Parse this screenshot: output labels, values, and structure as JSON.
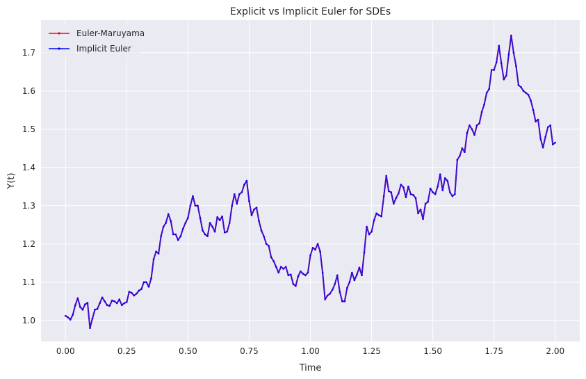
{
  "chart_data": {
    "type": "line",
    "title": "Explicit vs Implicit Euler for SDEs",
    "xlabel": "Time",
    "ylabel": "Y(t)",
    "xlim": [
      -0.1,
      2.1
    ],
    "ylim": [
      0.945,
      1.785
    ],
    "xticks": [
      0.0,
      0.25,
      0.5,
      0.75,
      1.0,
      1.25,
      1.5,
      1.75,
      2.0
    ],
    "xtick_labels": [
      "0.00",
      "0.25",
      "0.50",
      "0.75",
      "1.00",
      "1.25",
      "1.50",
      "1.75",
      "2.00"
    ],
    "yticks": [
      1.0,
      1.1,
      1.2,
      1.3,
      1.4,
      1.5,
      1.6,
      1.7
    ],
    "ytick_labels": [
      "1.0",
      "1.1",
      "1.2",
      "1.3",
      "1.4",
      "1.5",
      "1.6",
      "1.7"
    ],
    "grid": true,
    "legend": "top-left",
    "colors": {
      "background": "#eaeaf2",
      "grid": "#ffffff",
      "euler": "#ff0000",
      "implicit": "#0000ff"
    },
    "x": [
      0.0,
      0.01,
      0.02,
      0.03,
      0.04,
      0.05,
      0.06,
      0.07,
      0.08,
      0.09,
      0.1,
      0.11,
      0.12,
      0.13,
      0.14,
      0.15,
      0.16,
      0.17,
      0.18,
      0.19,
      0.2,
      0.21,
      0.22,
      0.23,
      0.24,
      0.25,
      0.26,
      0.27,
      0.28,
      0.29,
      0.3,
      0.31,
      0.32,
      0.33,
      0.34,
      0.35,
      0.36,
      0.37,
      0.38,
      0.39,
      0.4,
      0.41,
      0.42,
      0.43,
      0.44,
      0.45,
      0.46,
      0.47,
      0.48,
      0.49,
      0.5,
      0.51,
      0.52,
      0.53,
      0.54,
      0.55,
      0.56,
      0.57,
      0.58,
      0.59,
      0.6,
      0.61,
      0.62,
      0.63,
      0.64,
      0.65,
      0.66,
      0.67,
      0.68,
      0.69,
      0.7,
      0.71,
      0.72,
      0.73,
      0.74,
      0.75,
      0.76,
      0.77,
      0.78,
      0.79,
      0.8,
      0.81,
      0.82,
      0.83,
      0.84,
      0.85,
      0.86,
      0.87,
      0.88,
      0.89,
      0.9,
      0.91,
      0.92,
      0.93,
      0.94,
      0.95,
      0.96,
      0.97,
      0.98,
      0.99,
      1.0,
      1.01,
      1.02,
      1.03,
      1.04,
      1.05,
      1.06,
      1.07,
      1.08,
      1.09,
      1.1,
      1.11,
      1.12,
      1.13,
      1.14,
      1.15,
      1.16,
      1.17,
      1.18,
      1.19,
      1.2,
      1.21,
      1.22,
      1.23,
      1.24,
      1.25,
      1.26,
      1.27,
      1.28,
      1.29,
      1.3,
      1.31,
      1.32,
      1.33,
      1.34,
      1.35,
      1.36,
      1.37,
      1.38,
      1.39,
      1.4,
      1.41,
      1.42,
      1.43,
      1.44,
      1.45,
      1.46,
      1.47,
      1.48,
      1.49,
      1.5,
      1.51,
      1.52,
      1.53,
      1.54,
      1.55,
      1.56,
      1.57,
      1.58,
      1.59,
      1.6,
      1.61,
      1.62,
      1.63,
      1.64,
      1.65,
      1.66,
      1.67,
      1.68,
      1.69,
      1.7,
      1.71,
      1.72,
      1.73,
      1.74,
      1.75,
      1.76,
      1.77,
      1.78,
      1.79,
      1.8,
      1.81,
      1.82,
      1.83,
      1.84,
      1.85,
      1.86,
      1.87,
      1.88,
      1.89,
      1.9,
      1.91,
      1.92,
      1.93,
      1.94,
      1.95,
      1.96,
      1.97,
      1.98,
      1.99,
      2.0
    ],
    "series": [
      {
        "name": "Euler-Maruyama",
        "color": "#ff0000",
        "values": [
          1.012,
          1.008,
          1.002,
          1.015,
          1.04,
          1.058,
          1.035,
          1.028,
          1.042,
          1.046,
          0.98,
          1.005,
          1.028,
          1.03,
          1.045,
          1.06,
          1.05,
          1.04,
          1.038,
          1.052,
          1.05,
          1.045,
          1.055,
          1.04,
          1.045,
          1.048,
          1.075,
          1.072,
          1.065,
          1.07,
          1.078,
          1.082,
          1.1,
          1.1,
          1.088,
          1.11,
          1.16,
          1.18,
          1.175,
          1.22,
          1.245,
          1.255,
          1.278,
          1.26,
          1.225,
          1.225,
          1.21,
          1.22,
          1.24,
          1.255,
          1.268,
          1.3,
          1.325,
          1.3,
          1.3,
          1.268,
          1.235,
          1.225,
          1.22,
          1.255,
          1.245,
          1.232,
          1.27,
          1.262,
          1.272,
          1.23,
          1.232,
          1.255,
          1.3,
          1.33,
          1.305,
          1.33,
          1.335,
          1.355,
          1.365,
          1.312,
          1.275,
          1.29,
          1.295,
          1.26,
          1.235,
          1.22,
          1.2,
          1.195,
          1.165,
          1.155,
          1.14,
          1.125,
          1.14,
          1.135,
          1.14,
          1.118,
          1.12,
          1.095,
          1.09,
          1.115,
          1.128,
          1.122,
          1.118,
          1.125,
          1.17,
          1.19,
          1.185,
          1.2,
          1.18,
          1.125,
          1.055,
          1.065,
          1.07,
          1.08,
          1.095,
          1.118,
          1.075,
          1.05,
          1.05,
          1.085,
          1.1,
          1.125,
          1.105,
          1.12,
          1.138,
          1.118,
          1.178,
          1.245,
          1.225,
          1.232,
          1.262,
          1.28,
          1.275,
          1.272,
          1.325,
          1.378,
          1.338,
          1.335,
          1.305,
          1.32,
          1.332,
          1.355,
          1.348,
          1.322,
          1.35,
          1.33,
          1.328,
          1.32,
          1.28,
          1.29,
          1.265,
          1.305,
          1.31,
          1.345,
          1.335,
          1.33,
          1.35,
          1.382,
          1.34,
          1.372,
          1.365,
          1.335,
          1.325,
          1.33,
          1.42,
          1.43,
          1.45,
          1.44,
          1.49,
          1.51,
          1.5,
          1.485,
          1.51,
          1.515,
          1.545,
          1.565,
          1.595,
          1.605,
          1.655,
          1.655,
          1.675,
          1.718,
          1.672,
          1.63,
          1.64,
          1.695,
          1.745,
          1.7,
          1.665,
          1.615,
          1.61,
          1.6,
          1.595,
          1.59,
          1.575,
          1.55,
          1.52,
          1.525,
          1.475,
          1.452,
          1.48,
          1.505,
          1.51,
          1.46,
          1.465
        ]
      },
      {
        "name": "Implicit Euler",
        "color": "#0000ff",
        "values": [
          1.012,
          1.008,
          1.002,
          1.015,
          1.04,
          1.058,
          1.035,
          1.028,
          1.042,
          1.046,
          0.98,
          1.005,
          1.028,
          1.03,
          1.045,
          1.06,
          1.05,
          1.04,
          1.038,
          1.052,
          1.05,
          1.045,
          1.055,
          1.04,
          1.045,
          1.048,
          1.075,
          1.072,
          1.065,
          1.07,
          1.078,
          1.082,
          1.1,
          1.1,
          1.088,
          1.11,
          1.16,
          1.18,
          1.175,
          1.22,
          1.245,
          1.255,
          1.278,
          1.26,
          1.225,
          1.225,
          1.21,
          1.22,
          1.24,
          1.255,
          1.268,
          1.3,
          1.325,
          1.3,
          1.3,
          1.268,
          1.235,
          1.225,
          1.22,
          1.255,
          1.245,
          1.232,
          1.27,
          1.262,
          1.272,
          1.23,
          1.232,
          1.255,
          1.3,
          1.33,
          1.305,
          1.33,
          1.335,
          1.355,
          1.365,
          1.312,
          1.275,
          1.29,
          1.295,
          1.26,
          1.235,
          1.22,
          1.2,
          1.195,
          1.165,
          1.155,
          1.14,
          1.125,
          1.14,
          1.135,
          1.14,
          1.118,
          1.12,
          1.095,
          1.09,
          1.115,
          1.128,
          1.122,
          1.118,
          1.125,
          1.17,
          1.19,
          1.185,
          1.2,
          1.18,
          1.125,
          1.055,
          1.065,
          1.07,
          1.08,
          1.095,
          1.118,
          1.075,
          1.05,
          1.05,
          1.085,
          1.1,
          1.125,
          1.105,
          1.12,
          1.138,
          1.118,
          1.178,
          1.245,
          1.225,
          1.232,
          1.262,
          1.28,
          1.275,
          1.272,
          1.325,
          1.378,
          1.338,
          1.335,
          1.305,
          1.32,
          1.332,
          1.355,
          1.348,
          1.322,
          1.35,
          1.33,
          1.328,
          1.32,
          1.28,
          1.29,
          1.265,
          1.305,
          1.31,
          1.345,
          1.335,
          1.33,
          1.35,
          1.382,
          1.34,
          1.372,
          1.365,
          1.335,
          1.325,
          1.33,
          1.42,
          1.43,
          1.45,
          1.44,
          1.49,
          1.51,
          1.5,
          1.485,
          1.51,
          1.515,
          1.545,
          1.565,
          1.595,
          1.605,
          1.655,
          1.655,
          1.675,
          1.718,
          1.672,
          1.63,
          1.64,
          1.695,
          1.745,
          1.7,
          1.665,
          1.615,
          1.61,
          1.6,
          1.595,
          1.59,
          1.575,
          1.55,
          1.52,
          1.525,
          1.475,
          1.452,
          1.48,
          1.505,
          1.51,
          1.46,
          1.465
        ]
      }
    ]
  }
}
